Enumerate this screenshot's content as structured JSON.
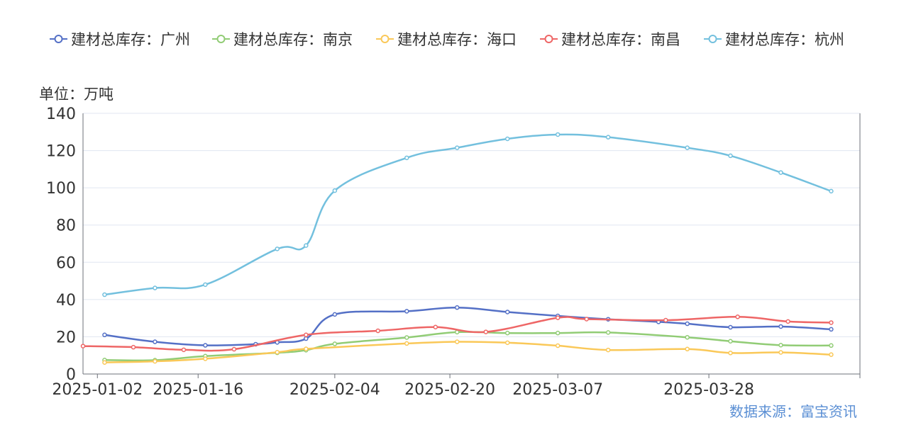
{
  "chart_data": {
    "type": "line",
    "smooth": true,
    "unit_label": "单位：万吨",
    "source": "数据来源：富宝资讯",
    "legend_position": "top-center",
    "ylim": [
      0,
      140
    ],
    "y_ticks": [
      0,
      20,
      40,
      60,
      80,
      100,
      120,
      140
    ],
    "x_range": [
      "2024-12-31",
      "2025-04-18"
    ],
    "x_ticks": [
      "2025-01-02",
      "2025-01-16",
      "2025-02-04",
      "2025-02-20",
      "2025-03-07",
      "2025-03-28"
    ],
    "grid": "horizontal",
    "series": [
      {
        "name": "建材总库存：广州",
        "color": "#5470c6",
        "points": [
          [
            "2025-01-03",
            21.0
          ],
          [
            "2025-01-10",
            17.3
          ],
          [
            "2025-01-17",
            15.4
          ],
          [
            "2025-01-24",
            16.0
          ],
          [
            "2025-01-27",
            17.0
          ],
          [
            "2025-01-31",
            19.0
          ],
          [
            "2025-02-04",
            32.0
          ],
          [
            "2025-02-14",
            33.7
          ],
          [
            "2025-02-21",
            35.7
          ],
          [
            "2025-02-28",
            33.3
          ],
          [
            "2025-03-07",
            31.2
          ],
          [
            "2025-03-14",
            29.4
          ],
          [
            "2025-03-21",
            28.0
          ],
          [
            "2025-03-25",
            27.0
          ],
          [
            "2025-03-31",
            25.1
          ],
          [
            "2025-04-07",
            25.5
          ],
          [
            "2025-04-14",
            24.0
          ]
        ]
      },
      {
        "name": "建材总库存：南京",
        "color": "#91cc75",
        "points": [
          [
            "2025-01-03",
            7.5
          ],
          [
            "2025-01-10",
            7.4
          ],
          [
            "2025-01-17",
            9.6
          ],
          [
            "2025-01-27",
            11.4
          ],
          [
            "2025-01-31",
            12.8
          ],
          [
            "2025-02-04",
            16.2
          ],
          [
            "2025-02-14",
            19.6
          ],
          [
            "2025-02-21",
            22.5
          ],
          [
            "2025-02-28",
            22.0
          ],
          [
            "2025-03-07",
            22.0
          ],
          [
            "2025-03-14",
            22.3
          ],
          [
            "2025-03-25",
            19.7
          ],
          [
            "2025-03-31",
            17.6
          ],
          [
            "2025-04-07",
            15.5
          ],
          [
            "2025-04-14",
            15.3
          ]
        ]
      },
      {
        "name": "建材总库存：海口",
        "color": "#fac858",
        "points": [
          [
            "2025-01-03",
            6.2
          ],
          [
            "2025-01-10",
            6.8
          ],
          [
            "2025-01-17",
            8.2
          ],
          [
            "2025-01-27",
            11.7
          ],
          [
            "2025-01-31",
            13.5
          ],
          [
            "2025-02-14",
            16.4
          ],
          [
            "2025-02-21",
            17.3
          ],
          [
            "2025-02-28",
            16.8
          ],
          [
            "2025-03-07",
            15.2
          ],
          [
            "2025-03-14",
            12.9
          ],
          [
            "2025-03-25",
            13.4
          ],
          [
            "2025-03-31",
            11.3
          ],
          [
            "2025-04-07",
            11.6
          ],
          [
            "2025-04-14",
            10.4
          ]
        ]
      },
      {
        "name": "建材总库存：南昌",
        "color": "#ee6666",
        "points": [
          [
            "2024-12-31",
            15.0
          ],
          [
            "2025-01-07",
            14.4
          ],
          [
            "2025-01-14",
            13.0
          ],
          [
            "2025-01-21",
            13.3
          ],
          [
            "2025-01-31",
            21.0
          ],
          [
            "2025-02-10",
            23.2
          ],
          [
            "2025-02-18",
            25.2
          ],
          [
            "2025-02-25",
            22.6
          ],
          [
            "2025-03-07",
            30.2
          ],
          [
            "2025-03-11",
            29.5
          ],
          [
            "2025-03-22",
            28.9
          ],
          [
            "2025-04-01",
            30.7
          ],
          [
            "2025-04-08",
            28.2
          ],
          [
            "2025-04-14",
            27.6
          ]
        ]
      },
      {
        "name": "建材总库存：杭州",
        "color": "#73c0de",
        "points": [
          [
            "2025-01-03",
            42.6
          ],
          [
            "2025-01-10",
            46.2
          ],
          [
            "2025-01-17",
            48.0
          ],
          [
            "2025-01-27",
            67.2
          ],
          [
            "2025-01-31",
            69.0
          ],
          [
            "2025-02-04",
            98.5
          ],
          [
            "2025-02-14",
            116.1
          ],
          [
            "2025-02-21",
            121.5
          ],
          [
            "2025-02-28",
            126.3
          ],
          [
            "2025-03-07",
            128.6
          ],
          [
            "2025-03-14",
            127.2
          ],
          [
            "2025-03-25",
            121.5
          ],
          [
            "2025-03-31",
            117.2
          ],
          [
            "2025-04-07",
            108.2
          ],
          [
            "2025-04-14",
            98.2
          ]
        ]
      }
    ]
  }
}
